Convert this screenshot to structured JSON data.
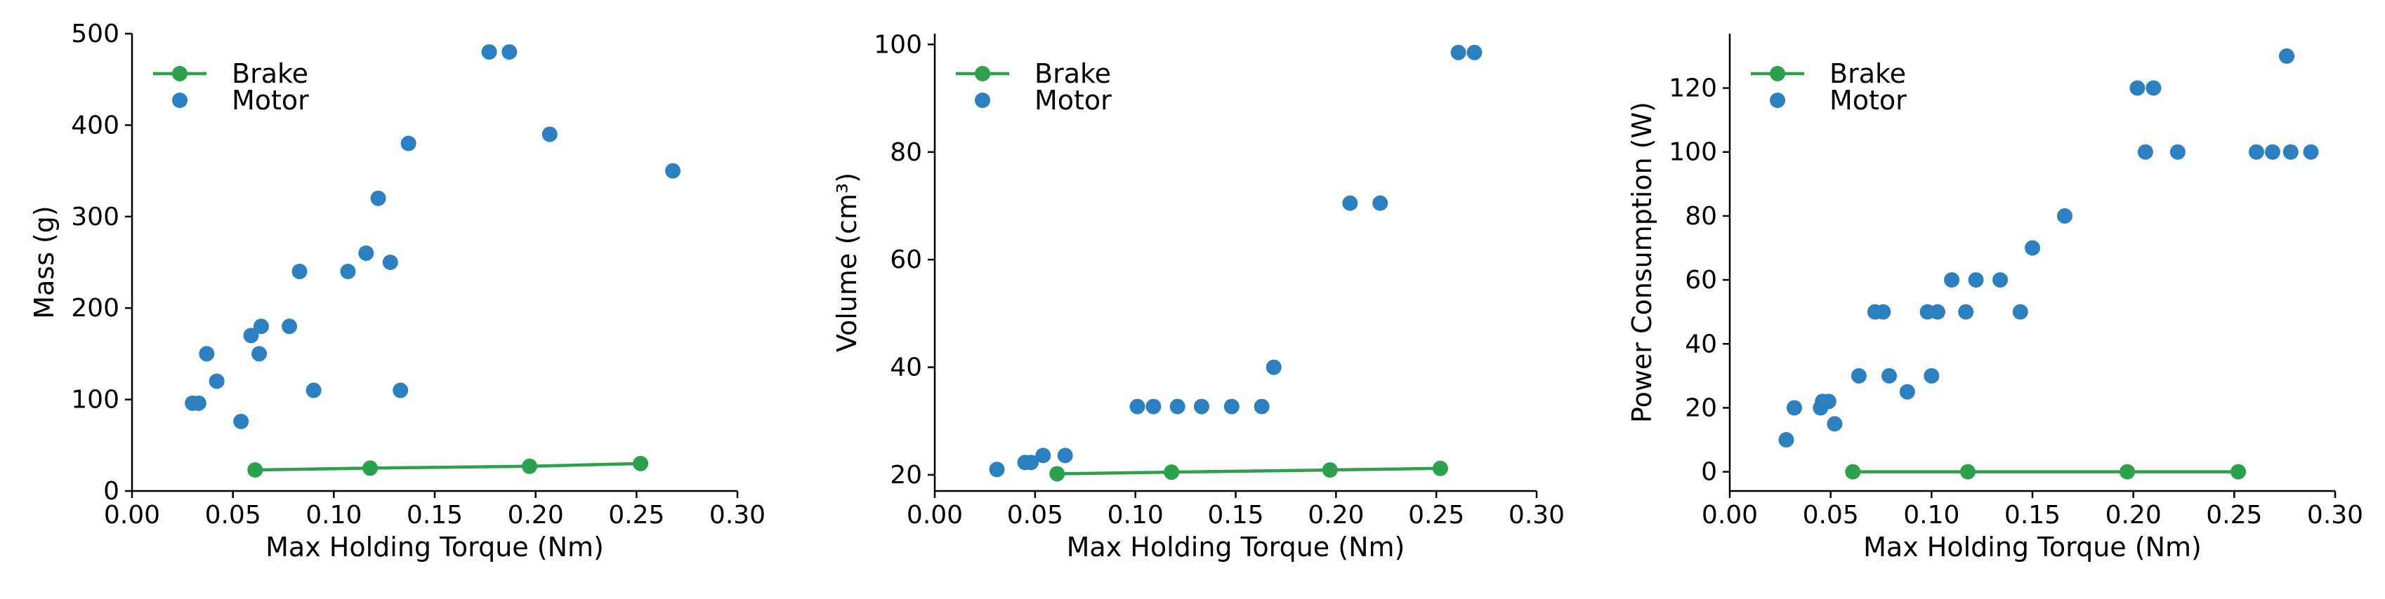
{
  "colors": {
    "brake": "#2ca04c",
    "motor": "#2d80c0",
    "axis": "#000000"
  },
  "legend_position": "top-left",
  "chart_data": [
    {
      "type": "scatter",
      "title": "",
      "xlabel": "Max Holding Torque (Nm)",
      "ylabel": "Mass (g)",
      "xlim": [
        0.0,
        0.3
      ],
      "ylim": [
        0,
        500
      ],
      "xticks": [
        "0.00",
        "0.05",
        "0.10",
        "0.15",
        "0.20",
        "0.25",
        "0.30"
      ],
      "yticks": [
        "0",
        "100",
        "200",
        "300",
        "400",
        "500"
      ],
      "grid": false,
      "series": [
        {
          "name": "Brake",
          "kind": "line",
          "x": [
            0.061,
            0.118,
            0.197,
            0.252
          ],
          "y": [
            23,
            25,
            27,
            30
          ]
        },
        {
          "name": "Motor",
          "kind": "scatter",
          "x": [
            0.03,
            0.033,
            0.037,
            0.042,
            0.054,
            0.059,
            0.063,
            0.064,
            0.078,
            0.083,
            0.09,
            0.107,
            0.116,
            0.122,
            0.128,
            0.133,
            0.137,
            0.177,
            0.187,
            0.207,
            0.268
          ],
          "y": [
            96,
            96,
            150,
            120,
            76,
            170,
            150,
            180,
            180,
            240,
            110,
            240,
            260,
            320,
            250,
            110,
            380,
            480,
            480,
            390,
            350
          ]
        }
      ]
    },
    {
      "type": "scatter",
      "title": "",
      "xlabel": "Max Holding Torque (Nm)",
      "ylabel": "Volume (cm³)",
      "xlim": [
        0.0,
        0.3
      ],
      "ylim": [
        17,
        102
      ],
      "xticks": [
        "0.00",
        "0.05",
        "0.10",
        "0.15",
        "0.20",
        "0.25",
        "0.30"
      ],
      "yticks": [
        "20",
        "40",
        "60",
        "80",
        "100"
      ],
      "grid": false,
      "series": [
        {
          "name": "Brake",
          "kind": "line",
          "x": [
            0.061,
            0.118,
            0.197,
            0.252
          ],
          "y": [
            20.2,
            20.5,
            20.9,
            21.2
          ]
        },
        {
          "name": "Motor",
          "kind": "scatter",
          "x": [
            0.031,
            0.045,
            0.048,
            0.054,
            0.065,
            0.101,
            0.109,
            0.121,
            0.133,
            0.148,
            0.163,
            0.169,
            0.207,
            0.222,
            0.261,
            0.269
          ],
          "y": [
            21.0,
            22.3,
            22.3,
            23.6,
            23.6,
            32.7,
            32.7,
            32.7,
            32.7,
            32.7,
            32.7,
            40.0,
            70.5,
            70.5,
            98.5,
            98.5
          ]
        }
      ]
    },
    {
      "type": "scatter",
      "title": "",
      "xlabel": "Max Holding Torque (Nm)",
      "ylabel": "Power Consumption (W)",
      "xlim": [
        0.0,
        0.3
      ],
      "ylim": [
        -6,
        137
      ],
      "xticks": [
        "0.00",
        "0.05",
        "0.10",
        "0.15",
        "0.20",
        "0.25",
        "0.30"
      ],
      "yticks": [
        "0",
        "20",
        "40",
        "60",
        "80",
        "100",
        "120"
      ],
      "grid": false,
      "series": [
        {
          "name": "Brake",
          "kind": "line",
          "x": [
            0.061,
            0.118,
            0.197,
            0.252
          ],
          "y": [
            0,
            0,
            0,
            0
          ]
        },
        {
          "name": "Motor",
          "kind": "scatter",
          "x": [
            0.028,
            0.032,
            0.045,
            0.046,
            0.049,
            0.052,
            0.064,
            0.072,
            0.076,
            0.079,
            0.088,
            0.098,
            0.1,
            0.103,
            0.11,
            0.117,
            0.122,
            0.134,
            0.144,
            0.15,
            0.166,
            0.202,
            0.206,
            0.21,
            0.222,
            0.261,
            0.269,
            0.276,
            0.278,
            0.288
          ],
          "y": [
            10,
            20,
            20,
            22,
            22,
            15,
            30,
            50,
            50,
            30,
            25,
            50,
            30,
            50,
            60,
            50,
            60,
            60,
            50,
            70,
            80,
            120,
            100,
            120,
            100,
            100,
            100,
            130,
            100,
            100
          ]
        }
      ]
    }
  ]
}
